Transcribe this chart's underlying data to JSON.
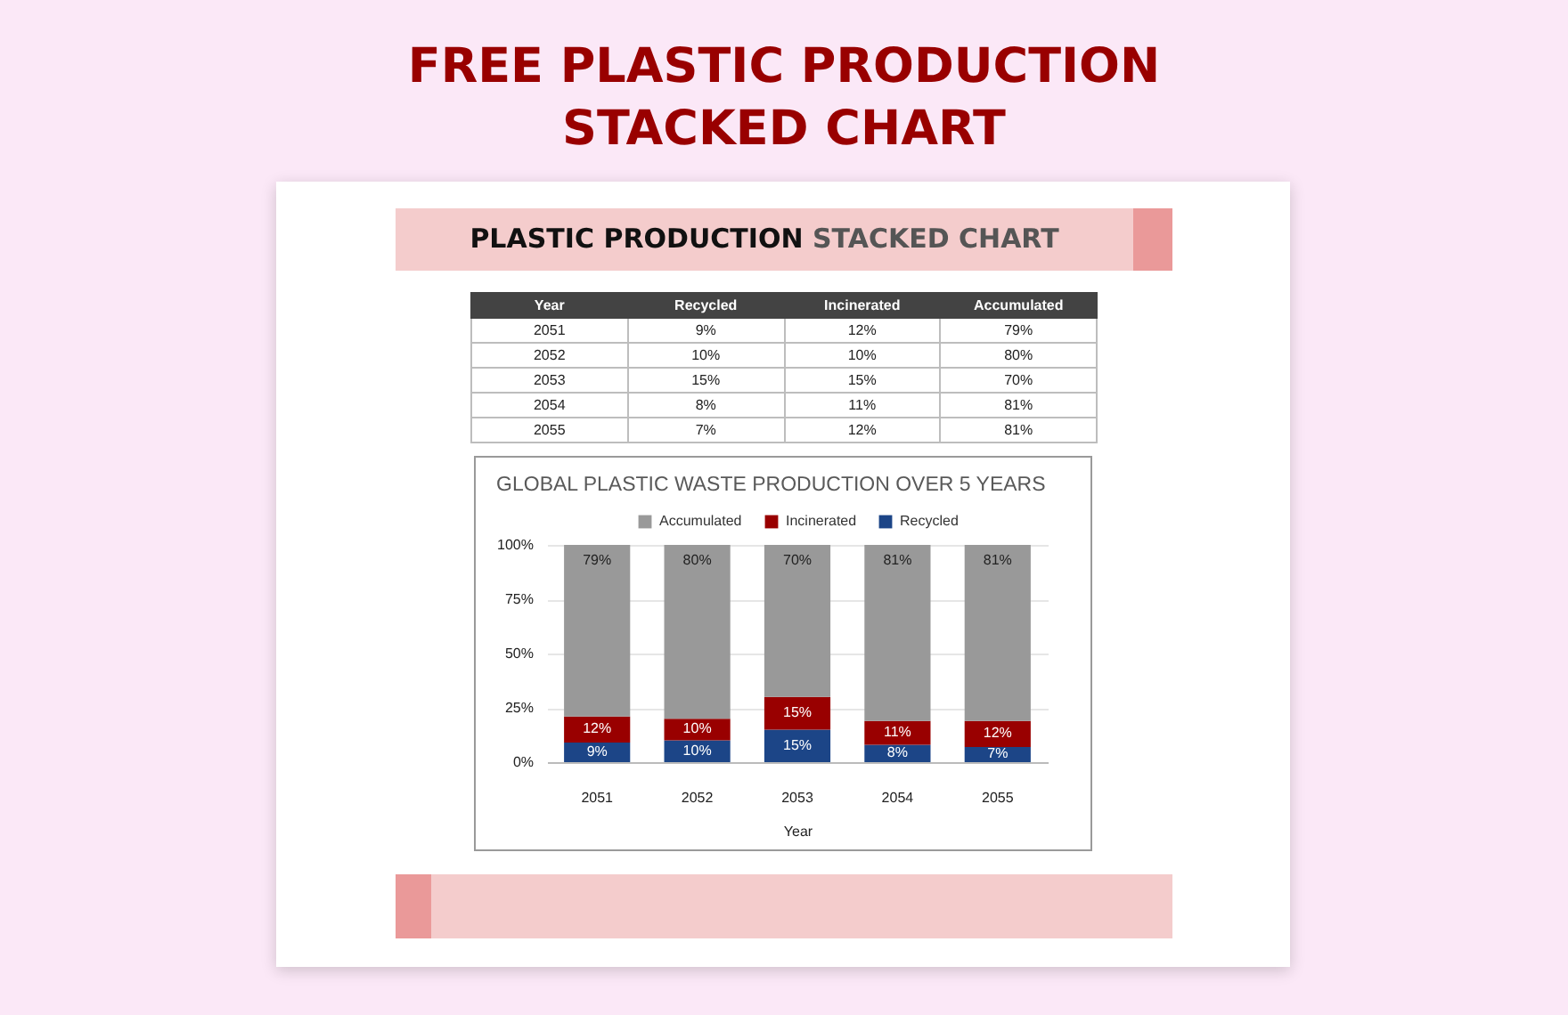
{
  "chart_data": {
    "type": "bar",
    "title": "GLOBAL PLASTIC WASTE PRODUCTION OVER 5 YEARS",
    "annotations": [
      "FREE PLASTIC PRODUCTION STACKED CHART",
      "PLASTIC PRODUCTION",
      "STACKED CHART"
    ],
    "xlabel": "Year",
    "categories": [
      "2051",
      "2052",
      "2053",
      "2054",
      "2055"
    ],
    "series": [
      {
        "name": "Recycled",
        "color": "#1c4587",
        "values": [
          9,
          10,
          15,
          8,
          7
        ],
        "value_labels": [
          "9%",
          "10%",
          "15%",
          "8%",
          "7%"
        ]
      },
      {
        "name": "Incinerated",
        "color": "#990000",
        "values": [
          12,
          10,
          15,
          11,
          12
        ],
        "value_labels": [
          "12%",
          "10%",
          "15%",
          "11%",
          "12%"
        ]
      },
      {
        "name": "Accumulated",
        "color": "#999999",
        "values": [
          79,
          80,
          70,
          81,
          81
        ],
        "value_labels": [
          "79%",
          "80%",
          "70%",
          "81%",
          "81%"
        ]
      }
    ],
    "stacked": true,
    "ylim": [
      0,
      100
    ],
    "yticks": [
      {
        "value": 0,
        "label": "0%"
      },
      {
        "value": 25,
        "label": "25%"
      },
      {
        "value": 50,
        "label": "50%"
      },
      {
        "value": 75,
        "label": "75%"
      },
      {
        "value": 100,
        "label": "100%"
      }
    ],
    "grid": "y",
    "legend": "top"
  }
}
